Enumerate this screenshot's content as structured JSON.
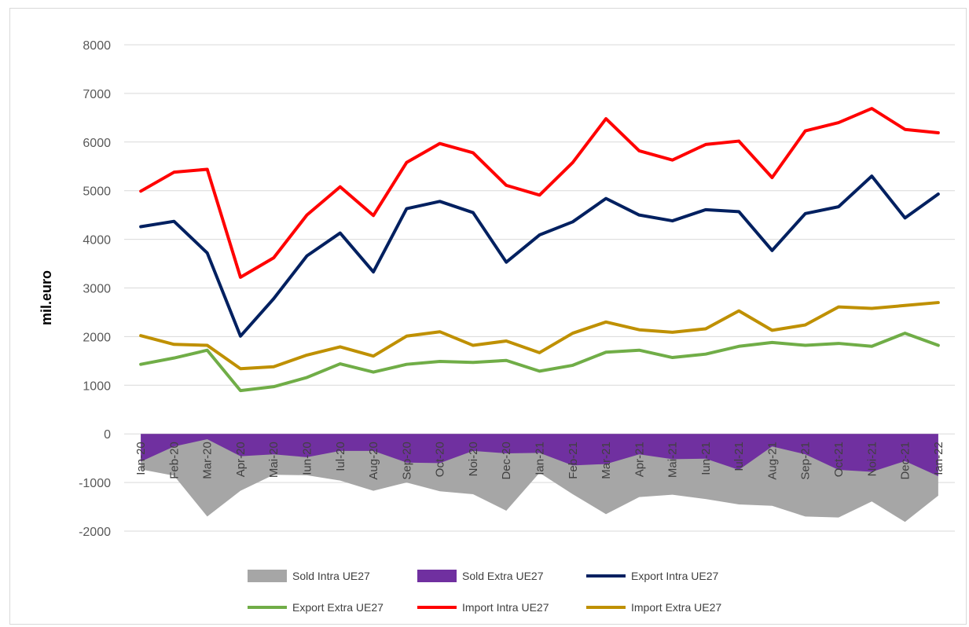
{
  "chart_data": {
    "type": "line",
    "ylabel": "mil.euro",
    "ylim": [
      -2000,
      8000
    ],
    "yticks": [
      -2000,
      -1000,
      0,
      1000,
      2000,
      3000,
      4000,
      5000,
      6000,
      7000,
      8000
    ],
    "grid": true,
    "legend_position": "bottom",
    "categories": [
      "Ian-20",
      "Feb-20",
      "Mar-20",
      "Apr-20",
      "Mai-20",
      "Iun-20",
      "Iul-20",
      "Aug-20",
      "Sep-20",
      "Oct-20",
      "Noi-20",
      "Dec-20",
      "Ian-21",
      "Feb-21",
      "Mar-21",
      "Apr-21",
      "Mai-21",
      "Iun-21",
      "Iul-21",
      "Aug-21",
      "Sep-21",
      "Oct-21",
      "Noi-21",
      "Dec-21",
      "Ian-22"
    ],
    "series": [
      {
        "name": "Sold Intra UE27",
        "kind": "area",
        "color": "#a6a6a6",
        "values": [
          -730,
          -860,
          -1700,
          -1170,
          -840,
          -850,
          -960,
          -1170,
          -1000,
          -1180,
          -1240,
          -1580,
          -800,
          -1240,
          -1650,
          -1300,
          -1250,
          -1340,
          -1450,
          -1480,
          -1700,
          -1720,
          -1390,
          -1810,
          -1270
        ]
      },
      {
        "name": "Sold Extra UE27",
        "kind": "area",
        "color": "#7030a0",
        "values": [
          -570,
          -260,
          -110,
          -460,
          -420,
          -480,
          -350,
          -350,
          -590,
          -600,
          -350,
          -400,
          -390,
          -650,
          -620,
          -420,
          -520,
          -510,
          -740,
          -260,
          -420,
          -740,
          -780,
          -560,
          -870
        ]
      },
      {
        "name": "Export Intra UE27",
        "kind": "line",
        "color": "#002060",
        "values": [
          4260,
          4370,
          3720,
          2010,
          2780,
          3660,
          4130,
          3330,
          4630,
          4780,
          4550,
          3530,
          4090,
          4360,
          4840,
          4500,
          4380,
          4610,
          4570,
          3770,
          4530,
          4670,
          5300,
          4440,
          4930
        ]
      },
      {
        "name": "Export Extra UE27",
        "kind": "line",
        "color": "#70ad47",
        "values": [
          1430,
          1560,
          1720,
          890,
          970,
          1160,
          1440,
          1270,
          1430,
          1490,
          1470,
          1510,
          1290,
          1410,
          1680,
          1720,
          1570,
          1640,
          1800,
          1880,
          1820,
          1860,
          1800,
          2070,
          1820
        ]
      },
      {
        "name": "Import Intra UE27",
        "kind": "line",
        "color": "#ff0000",
        "values": [
          4990,
          5380,
          5440,
          3220,
          3620,
          4500,
          5080,
          4490,
          5580,
          5970,
          5780,
          5110,
          4910,
          5580,
          6480,
          5820,
          5630,
          5950,
          6020,
          5270,
          6230,
          6400,
          6690,
          6260,
          6190
        ]
      },
      {
        "name": "Import Extra UE27",
        "kind": "line",
        "color": "#bf9000",
        "values": [
          2020,
          1840,
          1820,
          1340,
          1380,
          1620,
          1790,
          1600,
          2010,
          2100,
          1820,
          1910,
          1670,
          2070,
          2300,
          2140,
          2090,
          2160,
          2530,
          2130,
          2240,
          2610,
          2580,
          2640,
          2700
        ]
      }
    ]
  }
}
